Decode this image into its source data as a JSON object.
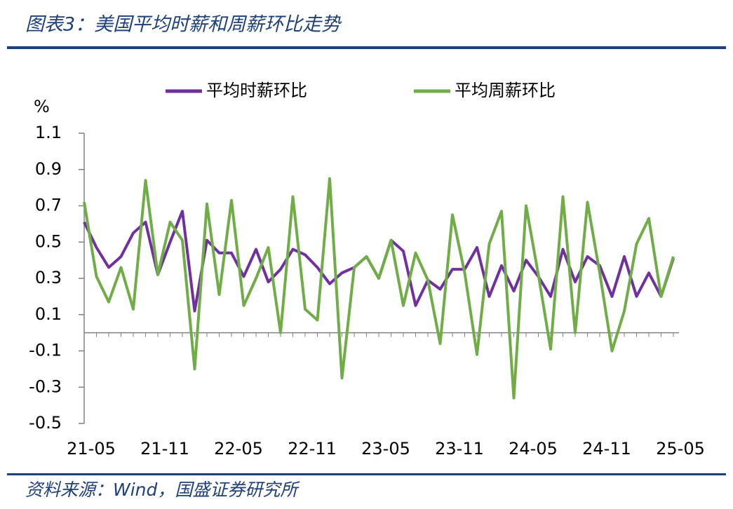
{
  "chart_data": {
    "type": "line",
    "title": "图表3：美国平均时薪和周薪环比走势",
    "y_label": "%",
    "source": "资料来源：Wind，国盛证券研究所",
    "categories": [
      "21-05",
      null,
      null,
      null,
      null,
      null,
      "21-11",
      null,
      null,
      null,
      null,
      null,
      "22-05",
      null,
      null,
      null,
      null,
      null,
      "22-11",
      null,
      null,
      null,
      null,
      null,
      "23-05",
      null,
      null,
      null,
      null,
      null,
      "23-11",
      null,
      null,
      null,
      null,
      null,
      "24-05",
      null,
      null,
      null,
      null,
      null,
      "24-11",
      null,
      null,
      null,
      null,
      null,
      "25-05"
    ],
    "series": [
      {
        "name": "平均时薪环比",
        "color": "#7030a0",
        "values": [
          0.61,
          0.47,
          0.36,
          0.42,
          0.55,
          0.61,
          0.32,
          0.5,
          0.67,
          0.12,
          0.51,
          0.44,
          0.44,
          0.31,
          0.46,
          0.28,
          0.35,
          0.46,
          0.43,
          0.36,
          0.27,
          0.33,
          0.36,
          0.42,
          0.3,
          0.51,
          0.45,
          0.15,
          0.29,
          0.24,
          0.35,
          0.35,
          0.47,
          0.2,
          0.37,
          0.23,
          0.4,
          0.31,
          0.2,
          0.46,
          0.28,
          0.42,
          0.37,
          0.2,
          0.42,
          0.2,
          0.33,
          0.2,
          0.41
        ]
      },
      {
        "name": "平均周薪环比",
        "color": "#70ad47",
        "values": [
          0.72,
          0.31,
          0.17,
          0.36,
          0.13,
          0.84,
          0.32,
          0.61,
          0.51,
          -0.2,
          0.71,
          0.21,
          0.73,
          0.15,
          0.3,
          0.47,
          0.0,
          0.75,
          0.13,
          0.07,
          0.85,
          -0.25,
          0.36,
          0.42,
          0.3,
          0.51,
          0.15,
          0.44,
          0.29,
          -0.06,
          0.65,
          0.33,
          -0.12,
          0.49,
          0.67,
          -0.36,
          0.7,
          0.32,
          -0.09,
          0.75,
          0.0,
          0.72,
          0.33,
          -0.1,
          0.12,
          0.49,
          0.63,
          0.2,
          0.42
        ]
      }
    ],
    "ylim": [
      -0.5,
      1.1
    ],
    "yticks": [
      1.1,
      0.9,
      0.7,
      0.5,
      0.3,
      0.1,
      -0.1,
      -0.3,
      -0.5
    ],
    "legend": "top"
  }
}
